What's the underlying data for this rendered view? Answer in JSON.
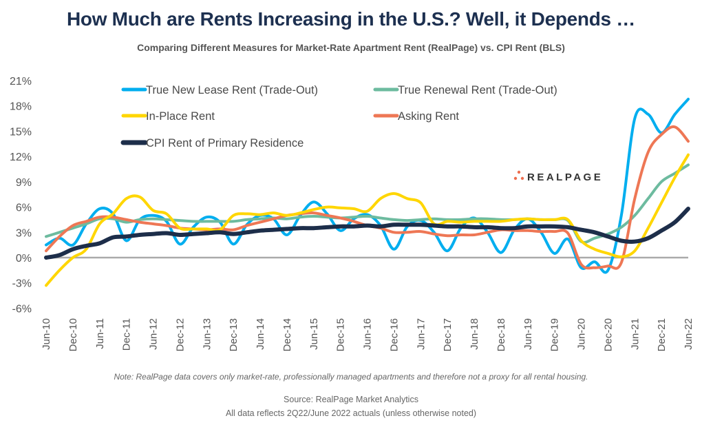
{
  "chart_data": {
    "type": "line",
    "title": "How Much are Rents Increasing in the U.S.? Well, it Depends …",
    "subtitle": "Comparing Different Measures for Market-Rate Apartment Rent (RealPage) vs. CPI Rent (BLS)",
    "xlabel": "",
    "ylabel": "",
    "ylim": [
      -6,
      21
    ],
    "yticks": [
      21,
      18,
      15,
      12,
      9,
      6,
      3,
      0,
      -3,
      -6
    ],
    "ytick_labels": [
      "21%",
      "18%",
      "15%",
      "12%",
      "9%",
      "6%",
      "3%",
      "0%",
      "-3%",
      "-6%"
    ],
    "xtick_labels": [
      "Jun-10",
      "Dec-10",
      "Jun-11",
      "Dec-11",
      "Jun-12",
      "Dec-12",
      "Jun-13",
      "Dec-13",
      "Jun-14",
      "Dec-14",
      "Jun-15",
      "Dec-15",
      "Jun-16",
      "Dec-16",
      "Jun-17",
      "Dec-17",
      "Jun-18",
      "Dec-18",
      "Jun-19",
      "Dec-19",
      "Jun-20",
      "Dec-20",
      "Jun-21",
      "Dec-21",
      "Jun-22"
    ],
    "x_unit": "quarter",
    "x_start": "Jun-10",
    "x_end": "Jun-22",
    "grid": false,
    "zero_line": true,
    "legend_position": "top-left",
    "series": [
      {
        "name": "True New Lease Rent (Trade-Out)",
        "color": "#00aeef",
        "values": [
          1.5,
          2.3,
          1.5,
          4.0,
          5.8,
          5.2,
          2.0,
          4.5,
          5.0,
          4.3,
          1.6,
          3.6,
          4.8,
          4.2,
          1.6,
          3.9,
          5.0,
          4.6,
          2.7,
          5.0,
          6.6,
          5.2,
          3.2,
          4.6,
          5.1,
          3.8,
          1.0,
          3.7,
          4.4,
          3.0,
          0.8,
          3.5,
          4.7,
          3.0,
          0.6,
          3.3,
          4.6,
          3.0,
          0.5,
          2.2,
          -1.2,
          -0.5,
          -1.5,
          5.0,
          16.5,
          17.0,
          14.8,
          17.0,
          18.8
        ]
      },
      {
        "name": "True Renewal Rent (Trade-Out)",
        "color": "#6dbb9f",
        "values": [
          2.5,
          3.0,
          3.5,
          4.0,
          4.6,
          4.6,
          4.2,
          4.5,
          4.6,
          4.5,
          4.4,
          4.3,
          4.3,
          4.3,
          4.3,
          4.5,
          4.6,
          4.7,
          4.6,
          4.8,
          4.9,
          4.8,
          4.7,
          4.8,
          4.9,
          4.7,
          4.5,
          4.4,
          4.5,
          4.6,
          4.5,
          4.5,
          4.6,
          4.6,
          4.5,
          4.5,
          4.6,
          4.5,
          4.5,
          4.4,
          1.9,
          2.3,
          2.8,
          3.6,
          5.0,
          7.0,
          9.0,
          10.0,
          11.0
        ]
      },
      {
        "name": "In-Place Rent",
        "color": "#ffd600",
        "values": [
          -3.3,
          -1.5,
          0.0,
          1.0,
          4.0,
          5.2,
          7.0,
          7.2,
          5.6,
          5.2,
          3.5,
          3.4,
          3.4,
          3.3,
          5.0,
          5.2,
          5.1,
          5.3,
          5.0,
          5.3,
          5.7,
          6.0,
          5.9,
          5.8,
          5.5,
          7.0,
          7.6,
          7.0,
          6.5,
          4.0,
          4.3,
          4.2,
          4.3,
          4.3,
          4.3,
          4.5,
          4.6,
          4.5,
          4.5,
          4.5,
          2.0,
          1.0,
          0.5,
          0.1,
          0.8,
          3.5,
          6.5,
          9.5,
          12.2
        ]
      },
      {
        "name": "Asking Rent",
        "color": "#ee7755",
        "values": [
          0.8,
          2.5,
          3.8,
          4.3,
          4.8,
          4.8,
          4.5,
          4.2,
          4.0,
          3.8,
          3.5,
          3.4,
          3.3,
          3.4,
          3.3,
          3.8,
          4.2,
          4.6,
          5.0,
          5.2,
          5.3,
          5.0,
          4.7,
          4.3,
          3.8,
          3.5,
          3.0,
          3.0,
          3.1,
          2.8,
          2.6,
          2.7,
          2.7,
          3.0,
          3.3,
          3.2,
          3.2,
          3.1,
          3.1,
          2.9,
          -0.8,
          -1.2,
          -1.0,
          -0.6,
          7.0,
          12.5,
          14.6,
          15.5,
          13.8
        ]
      },
      {
        "name": "CPI Rent of Primary Residence",
        "color": "#1d2e4a",
        "values": [
          0.0,
          0.3,
          1.0,
          1.4,
          1.7,
          2.4,
          2.5,
          2.7,
          2.8,
          2.9,
          2.7,
          2.8,
          2.9,
          3.0,
          2.8,
          3.0,
          3.2,
          3.3,
          3.4,
          3.5,
          3.5,
          3.6,
          3.7,
          3.7,
          3.8,
          3.7,
          3.9,
          3.9,
          3.9,
          3.8,
          3.7,
          3.7,
          3.6,
          3.6,
          3.5,
          3.5,
          3.7,
          3.7,
          3.7,
          3.6,
          3.3,
          3.0,
          2.5,
          2.0,
          1.9,
          2.3,
          3.2,
          4.2,
          5.8
        ]
      }
    ]
  },
  "note": "Note: RealPage data covers only market-rate, professionally managed apartments and therefore not a proxy for all rental housing.",
  "source_line": "Source: RealPage Market Analytics",
  "actuals_line": "All data reflects 2Q22/June 2022 actuals (unless otherwise noted)",
  "logo": {
    "name": "realpage-logo",
    "text": "REALPAGE",
    "dot_color": "#ee6e4f"
  }
}
